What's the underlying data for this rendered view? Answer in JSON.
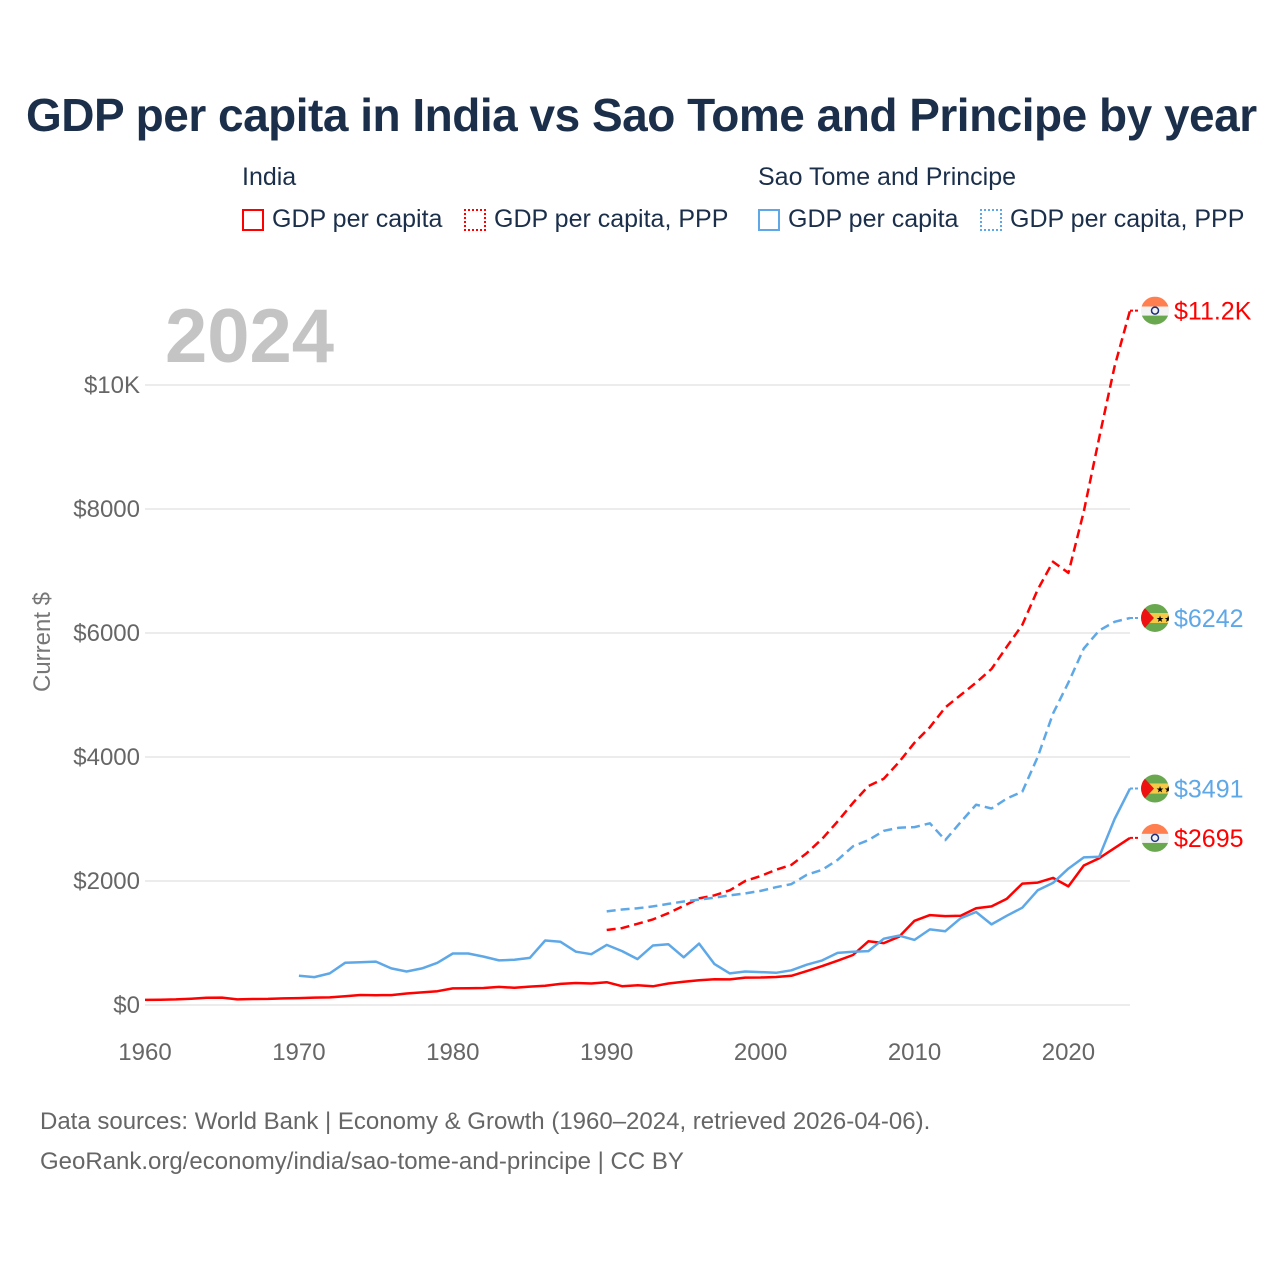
{
  "title": "GDP per capita in India vs Sao Tome and Principe by year",
  "legend": {
    "groups": [
      {
        "name": "India",
        "items": [
          "GDP per capita",
          "GDP per capita, PPP"
        ],
        "color": "#ff0000"
      },
      {
        "name": "Sao Tome and Principe",
        "items": [
          "GDP per capita",
          "GDP per capita, PPP"
        ],
        "color": "#5ea8e8"
      }
    ]
  },
  "year_watermark": "2024",
  "footer": {
    "line1": "Data sources: World Bank | Economy & Growth (1960–2024, retrieved 2026-04-06).",
    "line2": "GeoRank.org/economy/india/sao-tome-and-principe | CC BY"
  },
  "chart_data": {
    "type": "line",
    "title": "GDP per capita in India vs Sao Tome and Principe by year",
    "xlabel": "",
    "ylabel": "Current $",
    "xlim": [
      1960,
      2024
    ],
    "ylim": [
      0,
      10000
    ],
    "xticks": [
      1960,
      1970,
      1980,
      1990,
      2000,
      2010,
      2020
    ],
    "xtick_labels": [
      "1960",
      "1970",
      "1980",
      "1990",
      "2000",
      "2010",
      "2020"
    ],
    "yticks": [
      0,
      2000,
      4000,
      6000,
      8000,
      10000
    ],
    "ytick_labels": [
      "$0",
      "$2000",
      "$4000",
      "$6000",
      "$8000",
      "$10K"
    ],
    "grid": true,
    "series": [
      {
        "name": "India GDP per capita",
        "color": "#ff0000",
        "dash": false,
        "start": 1960,
        "end_label": "$2695",
        "values": [
          83,
          86,
          90,
          101,
          116,
          119,
          90,
          96,
          99,
          107,
          112,
          119,
          122,
          142,
          162,
          158,
          160,
          185,
          204,
          223,
          267,
          271,
          275,
          292,
          277,
          297,
          310,
          341,
          355,
          347,
          368,
          303,
          317,
          301,
          346,
          374,
          400,
          415,
          413,
          442,
          443,
          452,
          471,
          547,
          628,
          715,
          807,
          1028,
          999,
          1102,
          1358,
          1450,
          1434,
          1438,
          1560,
          1590,
          1714,
          1958,
          1974,
          2050,
          1913,
          2250,
          2367,
          2530,
          2695
        ]
      },
      {
        "name": "India GDP per capita, PPP",
        "color": "#ff0000",
        "dash": true,
        "start": 1990,
        "end_label": "$11.2K",
        "values": [
          1210,
          1240,
          1310,
          1380,
          1480,
          1600,
          1720,
          1770,
          1850,
          2000,
          2080,
          2180,
          2260,
          2450,
          2680,
          2960,
          3260,
          3530,
          3650,
          3920,
          4230,
          4480,
          4800,
          5000,
          5200,
          5420,
          5780,
          6130,
          6700,
          7150,
          6970,
          7960,
          9150,
          10300,
          11200
        ]
      },
      {
        "name": "Sao Tome and Principe GDP per capita",
        "color": "#5ea8e8",
        "dash": false,
        "start": 1970,
        "end_label": "$3491",
        "values": [
          473,
          450,
          510,
          680,
          690,
          700,
          590,
          540,
          590,
          680,
          830,
          830,
          780,
          720,
          730,
          760,
          1040,
          1020,
          860,
          820,
          970,
          870,
          740,
          960,
          980,
          770,
          990,
          660,
          510,
          540,
          530,
          520,
          560,
          650,
          720,
          840,
          860,
          870,
          1070,
          1120,
          1050,
          1220,
          1190,
          1400,
          1500,
          1300,
          1440,
          1570,
          1850,
          1970,
          2200,
          2380,
          2390,
          3000,
          3491
        ]
      },
      {
        "name": "Sao Tome and Principe GDP per capita, PPP",
        "color": "#5ea8e8",
        "dash": true,
        "start": 1990,
        "end_label": "$6242",
        "values": [
          1510,
          1540,
          1560,
          1590,
          1630,
          1670,
          1700,
          1730,
          1770,
          1800,
          1840,
          1900,
          1950,
          2100,
          2180,
          2340,
          2560,
          2660,
          2810,
          2860,
          2870,
          2930,
          2660,
          2950,
          3230,
          3170,
          3330,
          3440,
          4000,
          4700,
          5200,
          5750,
          6040,
          6180,
          6242
        ]
      }
    ]
  }
}
